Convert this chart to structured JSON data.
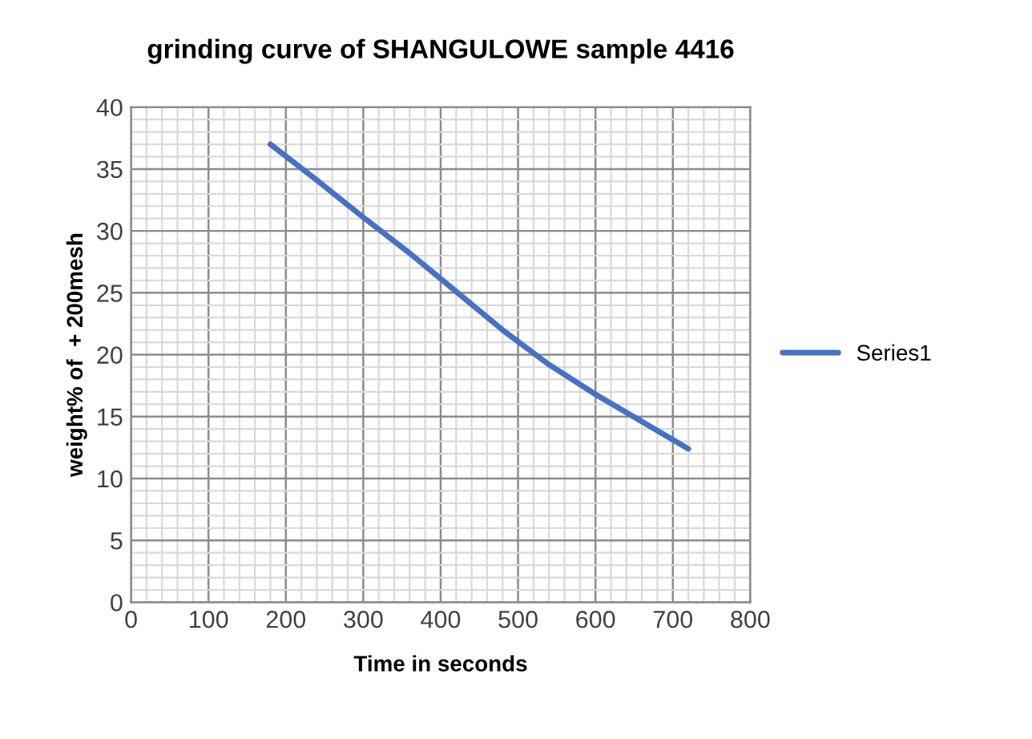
{
  "chart_data": {
    "type": "line",
    "title": "grinding curve of SHANGULOWE sample 4416",
    "xlabel": "Time in seconds",
    "ylabel": "weight% of  + 200mesh",
    "series": [
      {
        "name": "Series1",
        "color": "#4472c4",
        "x": [
          180,
          240,
          300,
          360,
          420,
          480,
          540,
          600,
          660,
          720
        ],
        "values": [
          37,
          34.1,
          31.1,
          28.2,
          25.1,
          22.0,
          19.2,
          16.8,
          14.6,
          12.4
        ]
      }
    ],
    "xlim": [
      0,
      800
    ],
    "xticks": [
      0,
      100,
      200,
      300,
      400,
      500,
      600,
      700,
      800
    ],
    "ylim": [
      0,
      40
    ],
    "yticks": [
      0,
      5,
      10,
      15,
      20,
      25,
      30,
      35,
      40
    ],
    "grid": true,
    "legend": "right",
    "marker": "none",
    "line_style": "solid"
  }
}
